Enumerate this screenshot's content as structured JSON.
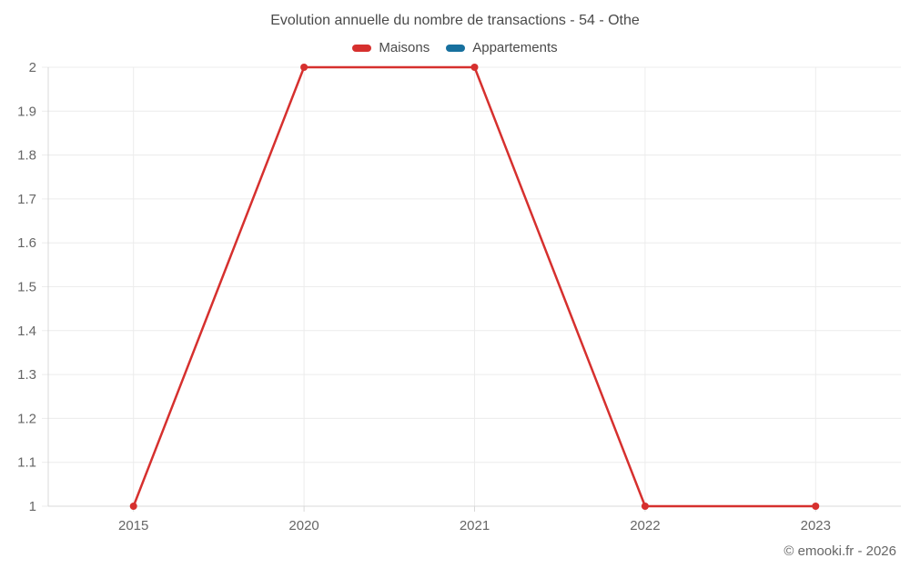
{
  "page": {
    "title": "Evolution annuelle du nombre de transactions - 54 - Othe",
    "copyright": "© emooki.fr - 2026"
  },
  "legend": {
    "items": [
      {
        "label": "Maisons",
        "color": "#d6302e"
      },
      {
        "label": "Appartements",
        "color": "#17709e"
      }
    ]
  },
  "colors": {
    "grid": "#ececec",
    "axis": "#d8d8d8",
    "axis_label": "#666666",
    "title_text": "#4a4a4a"
  },
  "chart_data": {
    "type": "line",
    "title": "Evolution annuelle du nombre de transactions - 54 - Othe",
    "categories": [
      "2015",
      "2020",
      "2021",
      "2022",
      "2023"
    ],
    "series": [
      {
        "name": "Maisons",
        "color": "#d6302e",
        "values": [
          1,
          2,
          2,
          1,
          1
        ]
      },
      {
        "name": "Appartements",
        "color": "#17709e",
        "values": []
      }
    ],
    "ylim": [
      1,
      2
    ],
    "ytick_step": 0.1,
    "yticks": [
      "1",
      "1.1",
      "1.2",
      "1.3",
      "1.4",
      "1.5",
      "1.6",
      "1.7",
      "1.8",
      "1.9",
      "2"
    ],
    "xlabel": "",
    "ylabel": "",
    "grid": true,
    "legend_position": "top",
    "marker_radius": 4
  }
}
